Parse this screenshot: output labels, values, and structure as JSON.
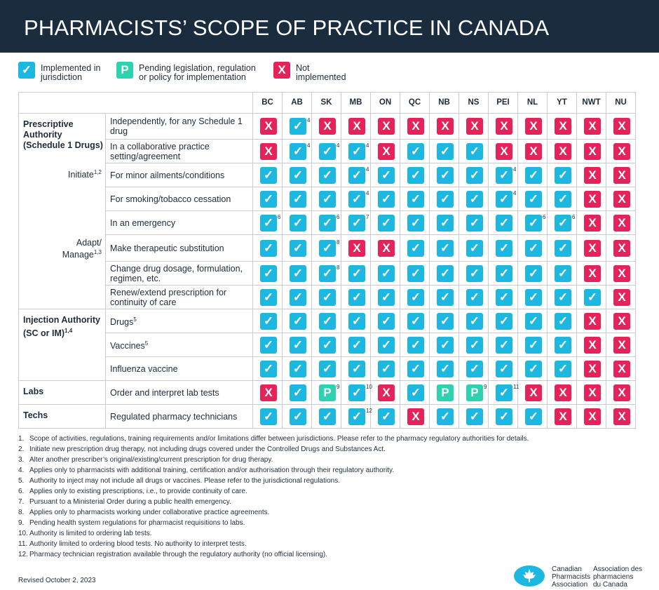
{
  "title": "PHARMACISTS’ SCOPE OF PRACTICE IN CANADA",
  "legend": [
    {
      "symbol": "check",
      "label": "Implemented in\njurisdiction"
    },
    {
      "symbol": "P",
      "label": "Pending legislation, regulation\nor policy for implementation"
    },
    {
      "symbol": "X",
      "label": "Not\nimplemented"
    }
  ],
  "colors": {
    "header_bg": "#1a2c3e",
    "check": "#1db8e2",
    "not_implemented": "#e5235a",
    "pending": "#2ed1b0"
  },
  "chart_data": {
    "type": "table",
    "columns": [
      "BC",
      "AB",
      "SK",
      "MB",
      "ON",
      "QC",
      "NB",
      "NS",
      "PEI",
      "NL",
      "YT",
      "NWT",
      "NU"
    ],
    "categories": [
      {
        "label": "Prescriptive\nAuthority\n(Schedule 1 Drugs)"
      },
      {
        "label": "Injection Authority\n(SC or IM)",
        "sup": "1,4"
      },
      {
        "label": "Labs"
      },
      {
        "label": "Techs"
      }
    ],
    "subcategories": [
      {
        "label": "Initiate",
        "sup": "1,2"
      },
      {
        "label": "Adapt/\nManage",
        "sup": "1,3"
      }
    ],
    "rows": [
      {
        "label": "Independently, for any Schedule 1\ndrug",
        "values": [
          "X",
          "C",
          "X",
          "X",
          "X",
          "X",
          "X",
          "X",
          "X",
          "X",
          "X",
          "X",
          "X"
        ],
        "notes": {
          "AB": "4"
        }
      },
      {
        "label": "In a collaborative practice\nsetting/agreement",
        "values": [
          "X",
          "C",
          "C",
          "C",
          "X",
          "C",
          "C",
          "C",
          "X",
          "X",
          "X",
          "X",
          "X"
        ],
        "notes": {
          "AB": "4",
          "SK": "4",
          "MB": "4"
        }
      },
      {
        "label": "For minor ailments/conditions",
        "values": [
          "C",
          "C",
          "C",
          "C",
          "C",
          "C",
          "C",
          "C",
          "C",
          "C",
          "C",
          "X",
          "X"
        ],
        "notes": {
          "MB": "4",
          "PEI": "4"
        }
      },
      {
        "label": "For smoking/tobacco cessation",
        "values": [
          "C",
          "C",
          "C",
          "C",
          "C",
          "C",
          "C",
          "C",
          "C",
          "C",
          "C",
          "X",
          "X"
        ],
        "notes": {
          "MB": "4",
          "PEI": "4"
        }
      },
      {
        "label": "In an emergency",
        "values": [
          "C",
          "C",
          "C",
          "C",
          "C",
          "C",
          "C",
          "C",
          "C",
          "C",
          "C",
          "X",
          "X"
        ],
        "notes": {
          "BC": "6",
          "SK": "6",
          "MB": "7",
          "NL": "6",
          "YT": "6"
        }
      },
      {
        "label": "Make therapeutic substitution",
        "values": [
          "C",
          "C",
          "C",
          "X",
          "X",
          "C",
          "C",
          "C",
          "C",
          "C",
          "C",
          "X",
          "X"
        ],
        "notes": {
          "SK": "8"
        }
      },
      {
        "label": "Change drug dosage, formulation,\nregimen, etc.",
        "values": [
          "C",
          "C",
          "C",
          "C",
          "C",
          "C",
          "C",
          "C",
          "C",
          "C",
          "C",
          "X",
          "X"
        ],
        "notes": {
          "SK": "8"
        }
      },
      {
        "label": "Renew/extend prescription for\ncontinuity of care",
        "values": [
          "C",
          "C",
          "C",
          "C",
          "C",
          "C",
          "C",
          "C",
          "C",
          "C",
          "C",
          "C",
          "X"
        ],
        "notes": {}
      },
      {
        "label": "Drugs",
        "sup": "5",
        "values": [
          "C",
          "C",
          "C",
          "C",
          "C",
          "C",
          "C",
          "C",
          "C",
          "C",
          "C",
          "X",
          "X"
        ],
        "notes": {}
      },
      {
        "label": "Vaccines",
        "sup": "5",
        "values": [
          "C",
          "C",
          "C",
          "C",
          "C",
          "C",
          "C",
          "C",
          "C",
          "C",
          "C",
          "X",
          "X"
        ],
        "notes": {}
      },
      {
        "label": "Influenza vaccine",
        "values": [
          "C",
          "C",
          "C",
          "C",
          "C",
          "C",
          "C",
          "C",
          "C",
          "C",
          "C",
          "X",
          "X"
        ],
        "notes": {}
      },
      {
        "label": "Order and interpret lab tests",
        "values": [
          "X",
          "C",
          "P",
          "C",
          "X",
          "C",
          "P",
          "P",
          "C",
          "X",
          "X",
          "X",
          "X"
        ],
        "notes": {
          "SK": "9",
          "MB": "10",
          "NS": "9",
          "PEI": "11"
        }
      },
      {
        "label": "Regulated pharmacy technicians",
        "values": [
          "C",
          "C",
          "C",
          "C",
          "C",
          "X",
          "C",
          "C",
          "C",
          "C",
          "X",
          "X",
          "X"
        ],
        "notes": {
          "MB": "12"
        }
      }
    ]
  },
  "footnotes": [
    "Scope of activities, regulations, training requirements and/or limitations differ between jurisdictions. Please refer to the pharmacy regulatory authorities for details.",
    "Initiate new prescription drug therapy, not including drugs covered under the Controlled Drugs and Substances Act.",
    "Alter another prescriber’s original/existing/current prescription for drug therapy.",
    "Applies only to pharmacists with additional training, certification and/or authorisation through their regulatory authority.",
    "Authority to inject may not include all drugs or vaccines. Please refer to the jurisdictional regulations.",
    "Applies only to existing prescriptions, i.e., to provide continuity of care.",
    "Pursuant to a Ministerial Order during a public health emergency.",
    "Applies only to pharmacists working under collaborative practice agreements.",
    "Pending health system regulations for pharmacist requisitions to labs.",
    "Authority is limited to ordering lab tests.",
    "Authority limited to ordering blood tests. No authority to interpret tests.",
    "Pharmacy technician registration available through the regulatory authority (no official licensing)."
  ],
  "revised": "Revised October 2, 2023",
  "logo": {
    "icon": "maple-leaf-mortar-icon",
    "en": "Canadian\nPharmacists\nAssociation",
    "fr": "Association des\npharmaciens\ndu Canada"
  },
  "symbols": {
    "check": "✓",
    "X": "X",
    "P": "P"
  }
}
